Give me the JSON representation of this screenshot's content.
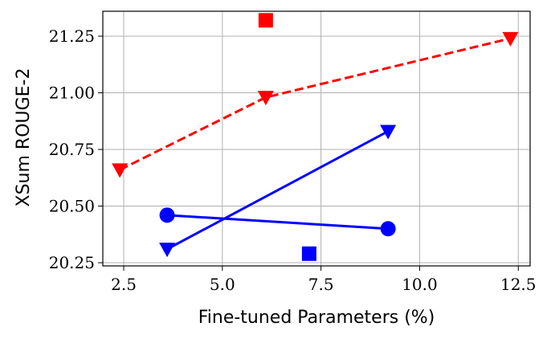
{
  "chart_data": {
    "type": "line",
    "x_label": "Fine-tuned Parameters (%)",
    "y_label": "XSum ROUGE-2",
    "xlim": [
      1.97,
      12.8
    ],
    "ylim": [
      20.236,
      21.36
    ],
    "xticks": [
      2.5,
      {
        "value": 5,
        "label": "5.0"
      },
      7.5,
      {
        "value": 10,
        "label": "10.0"
      },
      12.5
    ],
    "yticks": [
      20.25,
      {
        "value": 20.5,
        "label": "20.50"
      },
      20.75,
      {
        "value": 21,
        "label": "21.00"
      },
      21.25
    ],
    "grid": true,
    "series": [
      {
        "color": "#ff0000",
        "marker": "triangle-down",
        "linestyle": "dashed",
        "x": [
          2.4,
          6.1,
          12.3
        ],
        "values": [
          20.66,
          20.98,
          21.24
        ]
      },
      {
        "color": "#ff0000",
        "marker": "square",
        "linestyle": "none",
        "x": [
          6.1
        ],
        "values": [
          21.32
        ]
      },
      {
        "color": "#0000ff",
        "marker": "triangle-down",
        "linestyle": "solid",
        "x": [
          3.6,
          9.2
        ],
        "values": [
          20.31,
          20.83
        ]
      },
      {
        "color": "#0000ff",
        "marker": "circle",
        "linestyle": "solid",
        "x": [
          3.6,
          9.2
        ],
        "values": [
          20.46,
          20.4
        ]
      },
      {
        "color": "#0000ff",
        "marker": "square",
        "linestyle": "none",
        "x": [
          7.2
        ],
        "values": [
          20.29
        ]
      }
    ]
  }
}
